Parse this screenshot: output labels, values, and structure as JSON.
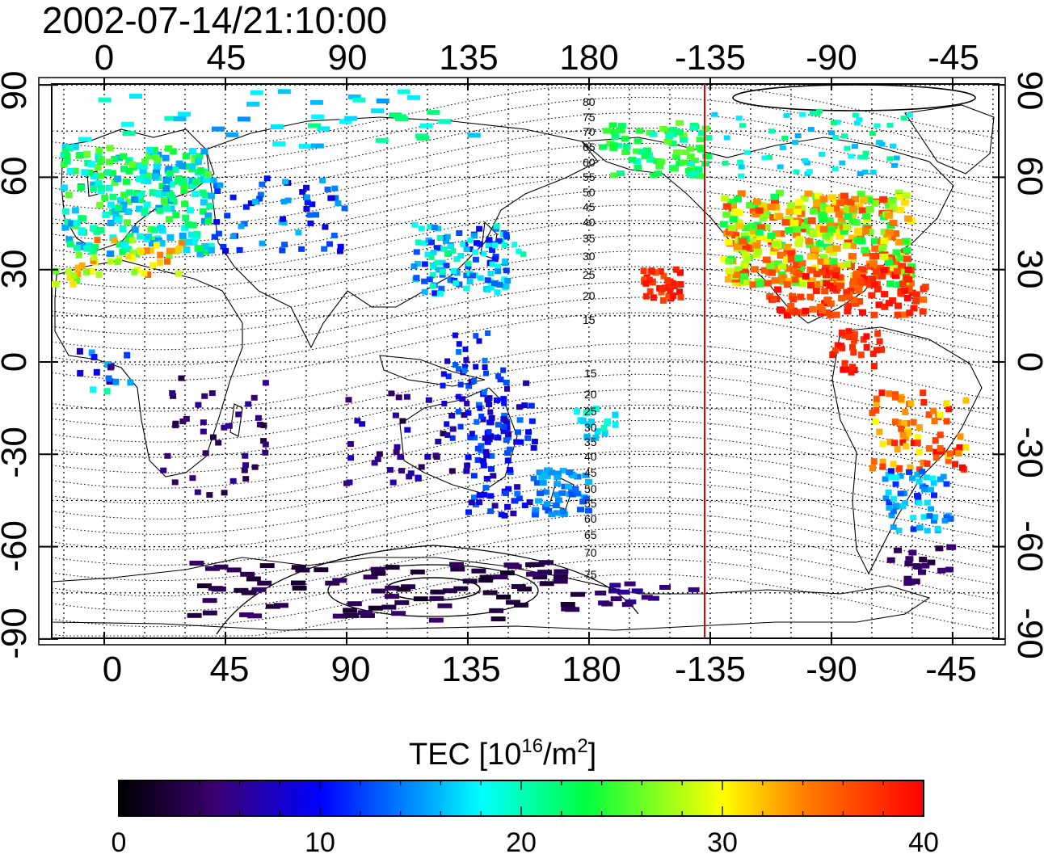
{
  "title": "2002-07-14/21:10:00",
  "map": {
    "top_lon_ticks": [
      "0",
      "45",
      "90",
      "135",
      "180",
      "-135",
      "-90",
      "-45"
    ],
    "bottom_lon_ticks": [
      "0",
      "45",
      "90",
      "135",
      "180",
      "-135",
      "-90",
      "-45"
    ],
    "left_lat_ticks": [
      "90",
      "60",
      "30",
      "0",
      "-30",
      "-60",
      "-90"
    ],
    "right_lat_ticks": [
      "90",
      "60",
      "30",
      "0",
      "-30",
      "-60",
      "-90"
    ],
    "contour_labels_north": [
      "80",
      "75",
      "70",
      "65",
      "60",
      "55",
      "50",
      "45",
      "40",
      "35",
      "30",
      "25",
      "20",
      "15"
    ],
    "contour_labels_south": [
      "15",
      "20",
      "25",
      "30",
      "35",
      "40",
      "45",
      "50",
      "55",
      "60",
      "65",
      "70",
      "75"
    ],
    "terminator_color": "#e00000"
  },
  "colorbar": {
    "label_main": "TEC  [10",
    "label_sup1": "16",
    "label_mid": "/m",
    "label_sup2": "2",
    "label_end": "]",
    "ticks": [
      "0",
      "10",
      "20",
      "30",
      "40"
    ],
    "min": 0,
    "max": 40,
    "colors": [
      "#000000",
      "#3a0070",
      "#0000ff",
      "#00ffff",
      "#00ff00",
      "#ffff00",
      "#ff0000"
    ]
  }
}
